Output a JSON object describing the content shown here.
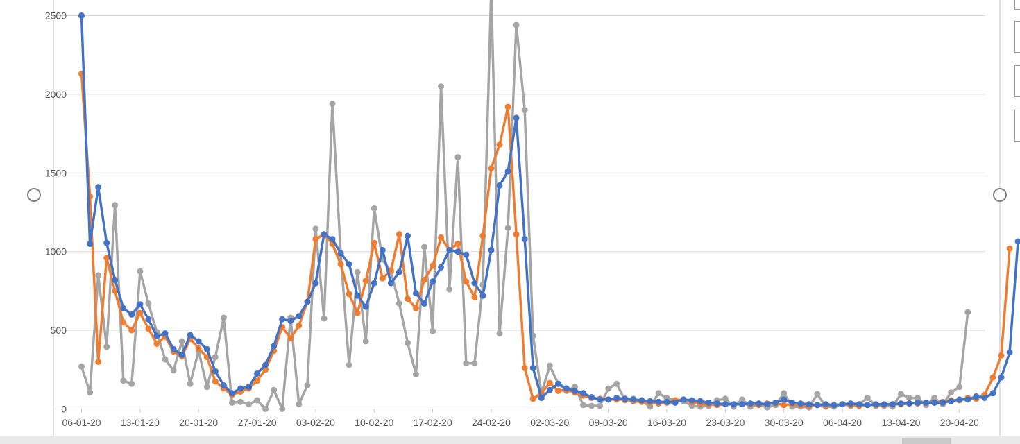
{
  "chart_data": {
    "type": "line",
    "title": "",
    "xlabel": "",
    "ylabel": "",
    "ylim": [
      0,
      2500
    ],
    "y_ticks": [
      "0",
      "500",
      "1000",
      "1500",
      "2000",
      "2500"
    ],
    "x_tick_labels": [
      "06-01-20",
      "13-01-20",
      "20-01-20",
      "27-01-20",
      "03-02-20",
      "10-02-20",
      "17-02-20",
      "24-02-20",
      "02-03-20",
      "09-03-20",
      "16-03-20",
      "23-03-20",
      "30-03-20",
      "06-04-20",
      "13-04-20",
      "20-04-20"
    ],
    "x_start": "06-01-20",
    "grid": true,
    "series": [
      {
        "color": "#4472c4",
        "values": [
          2500,
          1050,
          1410,
          1055,
          820,
          640,
          600,
          665,
          570,
          465,
          480,
          380,
          345,
          470,
          430,
          380,
          240,
          150,
          100,
          130,
          140,
          225,
          280,
          400,
          570,
          560,
          590,
          680,
          800,
          1110,
          1080,
          990,
          920,
          720,
          650,
          800,
          1010,
          800,
          870,
          1100,
          735,
          670,
          810,
          900,
          1010,
          1000,
          980,
          800,
          720,
          1010,
          1420,
          1510,
          1850,
          1080,
          260,
          70,
          120,
          160,
          130,
          115,
          100,
          75,
          60,
          60,
          70,
          65,
          60,
          55,
          50,
          45,
          45,
          40,
          60,
          55,
          50,
          40,
          35,
          30,
          30,
          30,
          35,
          35,
          30,
          40,
          60,
          40,
          35,
          30,
          25,
          30,
          25,
          30,
          35,
          30,
          25,
          30,
          30,
          30,
          35,
          35,
          40,
          40,
          40,
          40,
          50,
          60,
          60,
          80,
          70,
          100,
          200,
          360,
          1065
        ]
      },
      {
        "color": "#ed7d31",
        "values": [
          2130,
          1350,
          300,
          960,
          750,
          550,
          500,
          610,
          510,
          415,
          460,
          365,
          335,
          445,
          385,
          330,
          175,
          130,
          90,
          110,
          130,
          180,
          250,
          370,
          520,
          450,
          530,
          680,
          1080,
          1110,
          1050,
          920,
          730,
          610,
          815,
          1055,
          830,
          880,
          1110,
          700,
          640,
          820,
          910,
          1090,
          1010,
          1050,
          810,
          710,
          1100,
          1530,
          1680,
          1920,
          1110,
          260,
          65,
          100,
          165,
          115,
          120,
          105,
          85,
          70,
          65,
          60,
          60,
          60,
          50,
          45,
          40,
          35,
          40,
          55,
          60,
          45,
          35,
          30,
          25,
          30,
          30,
          30,
          30,
          25,
          35,
          35,
          25,
          30,
          25,
          20,
          25,
          20,
          25,
          30,
          25,
          20,
          25,
          25,
          25,
          30,
          30,
          35,
          35,
          40,
          40,
          45,
          55,
          55,
          70,
          65,
          90,
          200,
          340,
          1020
        ]
      },
      {
        "color": "#a5a5a5",
        "values": [
          270,
          105,
          850,
          395,
          1295,
          180,
          160,
          875,
          670,
          490,
          315,
          245,
          430,
          160,
          370,
          140,
          330,
          580,
          40,
          45,
          30,
          55,
          0,
          120,
          0,
          580,
          30,
          150,
          1145,
          575,
          1940,
          980,
          280,
          870,
          430,
          1275,
          950,
          870,
          670,
          420,
          220,
          1030,
          495,
          2050,
          760,
          1600,
          290,
          290,
          790,
          2670,
          480,
          1150,
          2440,
          1900,
          465,
          100,
          275,
          160,
          115,
          140,
          25,
          20,
          20,
          130,
          160,
          55,
          65,
          50,
          15,
          100,
          70,
          55,
          50,
          20,
          15,
          20,
          55,
          65,
          15,
          60,
          15,
          25,
          10,
          25,
          100,
          15,
          15,
          10,
          95,
          15,
          15,
          30,
          20,
          30,
          70,
          20,
          20,
          15,
          95,
          70,
          70,
          25,
          70,
          30,
          105,
          140,
          615
        ]
      }
    ]
  }
}
